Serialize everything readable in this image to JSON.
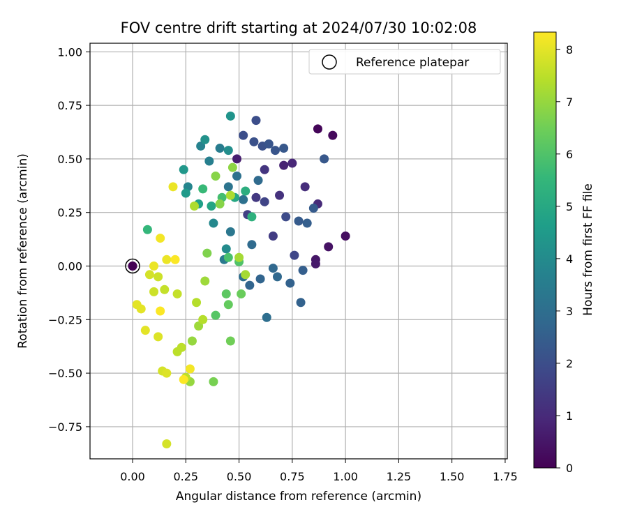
{
  "chart_data": {
    "type": "scatter",
    "title": "FOV centre drift starting at 2024/07/30 10:02:08",
    "xlabel": "Angular distance from reference (arcmin)",
    "ylabel": "Rotation from reference (arcmin)",
    "xlim": [
      -0.2,
      1.76
    ],
    "ylim": [
      -0.9,
      1.04
    ],
    "xticks": [
      "0.00",
      "0.25",
      "0.50",
      "0.75",
      "1.00",
      "1.25",
      "1.50",
      "1.75"
    ],
    "yticks": [
      "−0.75",
      "−0.50",
      "−0.25",
      "0.00",
      "0.25",
      "0.50",
      "0.75",
      "1.00"
    ],
    "grid": true,
    "legend": {
      "position": "top-right",
      "entries": [
        "Reference platepar"
      ]
    },
    "reference_point": {
      "x": 0.0,
      "y": 0.0,
      "hours": 0
    },
    "colorbar": {
      "label": "Hours from first FF file",
      "range": [
        0,
        8.33
      ],
      "ticks": [
        "0",
        "1",
        "2",
        "3",
        "4",
        "5",
        "6",
        "7",
        "8"
      ],
      "colormap": [
        "#440154",
        "#482878",
        "#3e4989",
        "#31688e",
        "#26828e",
        "#1f9e89",
        "#35b779",
        "#6ece58",
        "#b5de2b",
        "#fde725"
      ]
    },
    "points": [
      [
        0.0,
        0.0,
        0.0
      ],
      [
        0.87,
        0.64,
        0.1
      ],
      [
        0.94,
        0.61,
        0.2
      ],
      [
        1.0,
        0.14,
        0.3
      ],
      [
        0.92,
        0.09,
        0.4
      ],
      [
        0.86,
        0.03,
        0.5
      ],
      [
        0.86,
        0.01,
        0.6
      ],
      [
        0.49,
        0.5,
        0.7
      ],
      [
        0.71,
        0.47,
        0.8
      ],
      [
        0.75,
        0.48,
        0.9
      ],
      [
        0.87,
        0.29,
        1.0
      ],
      [
        0.81,
        0.37,
        1.1
      ],
      [
        0.69,
        0.33,
        1.2
      ],
      [
        0.62,
        0.45,
        1.3
      ],
      [
        0.58,
        0.32,
        1.4
      ],
      [
        0.66,
        0.14,
        1.5
      ],
      [
        0.54,
        0.24,
        1.6
      ],
      [
        0.62,
        0.3,
        1.7
      ],
      [
        0.76,
        0.05,
        1.8
      ],
      [
        0.72,
        0.23,
        1.9
      ],
      [
        0.52,
        0.61,
        2.0
      ],
      [
        0.58,
        0.68,
        2.0
      ],
      [
        0.57,
        0.58,
        2.1
      ],
      [
        0.61,
        0.56,
        2.1
      ],
      [
        0.64,
        0.57,
        2.2
      ],
      [
        0.67,
        0.54,
        2.2
      ],
      [
        0.71,
        0.55,
        2.3
      ],
      [
        0.9,
        0.5,
        2.3
      ],
      [
        0.85,
        0.27,
        2.4
      ],
      [
        0.78,
        0.21,
        2.4
      ],
      [
        0.82,
        0.2,
        2.5
      ],
      [
        0.8,
        -0.02,
        2.5
      ],
      [
        0.74,
        -0.08,
        2.6
      ],
      [
        0.79,
        -0.17,
        2.6
      ],
      [
        0.6,
        -0.06,
        2.7
      ],
      [
        0.55,
        -0.09,
        2.7
      ],
      [
        0.66,
        -0.01,
        2.8
      ],
      [
        0.68,
        -0.05,
        2.8
      ],
      [
        0.63,
        -0.24,
        3.0
      ],
      [
        0.52,
        -0.05,
        3.0
      ],
      [
        0.56,
        0.1,
        2.9
      ],
      [
        0.59,
        0.4,
        2.9
      ],
      [
        0.49,
        0.42,
        3.1
      ],
      [
        0.45,
        0.37,
        3.2
      ],
      [
        0.52,
        0.31,
        3.1
      ],
      [
        0.46,
        0.16,
        3.3
      ],
      [
        0.43,
        0.03,
        3.4
      ],
      [
        0.41,
        0.55,
        3.5
      ],
      [
        0.36,
        0.49,
        3.6
      ],
      [
        0.32,
        0.56,
        3.7
      ],
      [
        0.26,
        0.37,
        3.8
      ],
      [
        0.38,
        0.2,
        3.9
      ],
      [
        0.44,
        0.08,
        4.0
      ],
      [
        0.45,
        0.54,
        4.1
      ],
      [
        0.34,
        0.59,
        4.2
      ],
      [
        0.46,
        0.7,
        4.3
      ],
      [
        0.24,
        0.45,
        4.4
      ],
      [
        0.25,
        0.34,
        4.5
      ],
      [
        0.31,
        0.29,
        4.7
      ],
      [
        0.37,
        0.28,
        4.9
      ],
      [
        0.48,
        0.32,
        5.0
      ],
      [
        0.53,
        0.35,
        5.2
      ],
      [
        0.56,
        0.23,
        5.3
      ],
      [
        0.07,
        0.17,
        5.5
      ],
      [
        0.33,
        0.36,
        5.6
      ],
      [
        0.42,
        0.32,
        5.8
      ],
      [
        0.45,
        0.04,
        5.9
      ],
      [
        0.5,
        0.02,
        6.0
      ],
      [
        0.39,
        -0.23,
        6.1
      ],
      [
        0.44,
        -0.13,
        6.2
      ],
      [
        0.45,
        -0.18,
        6.3
      ],
      [
        0.51,
        -0.13,
        6.4
      ],
      [
        0.46,
        -0.35,
        6.5
      ],
      [
        0.38,
        -0.54,
        6.6
      ],
      [
        0.35,
        0.06,
        6.7
      ],
      [
        0.39,
        0.42,
        6.8
      ],
      [
        0.41,
        0.29,
        6.8
      ],
      [
        0.47,
        0.46,
        6.9
      ],
      [
        0.27,
        -0.54,
        7.0
      ],
      [
        0.28,
        -0.35,
        7.0
      ],
      [
        0.31,
        -0.28,
        7.1
      ],
      [
        0.34,
        -0.07,
        7.1
      ],
      [
        0.5,
        0.04,
        7.2
      ],
      [
        0.53,
        -0.04,
        7.2
      ],
      [
        0.46,
        0.33,
        7.3
      ],
      [
        0.29,
        0.28,
        7.3
      ],
      [
        0.3,
        -0.17,
        7.4
      ],
      [
        0.33,
        -0.25,
        7.4
      ],
      [
        0.25,
        -0.52,
        7.5
      ],
      [
        0.21,
        -0.4,
        7.5
      ],
      [
        0.23,
        -0.38,
        7.5
      ],
      [
        0.21,
        -0.13,
        7.6
      ],
      [
        0.15,
        -0.11,
        7.6
      ],
      [
        0.12,
        -0.05,
        7.7
      ],
      [
        0.1,
        -0.12,
        7.7
      ],
      [
        0.08,
        -0.04,
        7.8
      ],
      [
        0.16,
        -0.83,
        7.8
      ],
      [
        0.14,
        -0.49,
        7.8
      ],
      [
        0.16,
        -0.5,
        7.9
      ],
      [
        0.12,
        -0.33,
        7.9
      ],
      [
        0.06,
        -0.3,
        8.0
      ],
      [
        0.02,
        -0.18,
        8.0
      ],
      [
        0.04,
        -0.2,
        8.0
      ],
      [
        0.1,
        0.0,
        8.1
      ],
      [
        0.19,
        0.37,
        8.1
      ],
      [
        0.16,
        0.03,
        8.1
      ],
      [
        0.13,
        0.13,
        8.2
      ],
      [
        0.27,
        -0.48,
        8.2
      ],
      [
        0.24,
        -0.53,
        8.3
      ],
      [
        0.13,
        -0.21,
        8.3
      ],
      [
        0.2,
        0.03,
        8.3
      ]
    ]
  }
}
